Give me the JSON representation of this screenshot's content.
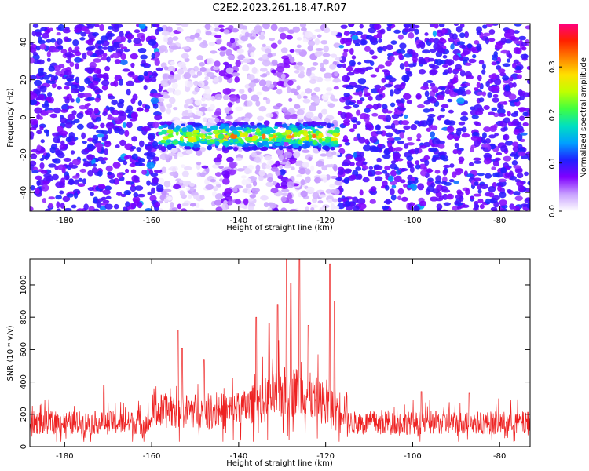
{
  "title": "C2E2.2023.261.18.47.R07",
  "colors": {
    "series": "#ee2222",
    "spectrogram_low": "#7a00ff",
    "colorbar": [
      "#ffffff",
      "#c8a0ff",
      "#8000ff",
      "#2020ff",
      "#00a0ff",
      "#00e0c0",
      "#40ff40",
      "#c0ff00",
      "#ffe000",
      "#ff8000",
      "#ff2000",
      "#ff0080"
    ]
  },
  "chart_data": [
    {
      "type": "heatmap",
      "xlabel": "Height of straight line (km)",
      "ylabel": "Frequency (Hz)",
      "xlim": [
        -188,
        -73
      ],
      "ylim": [
        -50,
        50
      ],
      "xticks": [
        -180,
        -160,
        -140,
        -120,
        -100,
        -80
      ],
      "yticks": [
        -40,
        -20,
        0,
        20,
        40
      ],
      "colorbar": {
        "label": "Normalized spectral amplitude",
        "range": [
          0,
          0.39
        ],
        "ticks": [
          0.0,
          0.1,
          0.2,
          0.3
        ]
      },
      "features": {
        "strong_band_freq_hz": -10,
        "strong_band_x_range": [
          -158,
          -117
        ],
        "low_amplitude_gaps_x": [
          [
            -158,
            -145
          ],
          [
            -140,
            -132
          ],
          [
            -127,
            -117
          ]
        ]
      },
      "grid": false
    },
    {
      "type": "line",
      "xlabel": "Height of straight line (km)",
      "ylabel": "SNR (10 * v/v)",
      "xlim": [
        -188,
        -73
      ],
      "ylim": [
        0,
        1160
      ],
      "xticks": [
        -180,
        -160,
        -140,
        -120,
        -100,
        -80
      ],
      "yticks": [
        0,
        200,
        400,
        600,
        800,
        1000
      ],
      "series": [
        {
          "baseline": 140,
          "noise_amplitude": 120,
          "peaks": [
            {
              "x": -154,
              "y": 720
            },
            {
              "x": -153,
              "y": 610
            },
            {
              "x": -148,
              "y": 540
            },
            {
              "x": -136,
              "y": 800
            },
            {
              "x": -133,
              "y": 760
            },
            {
              "x": -131,
              "y": 880
            },
            {
              "x": -129,
              "y": 1160
            },
            {
              "x": -128,
              "y": 1010
            },
            {
              "x": -126,
              "y": 1160
            },
            {
              "x": -124,
              "y": 750
            },
            {
              "x": -119,
              "y": 1130
            },
            {
              "x": -118,
              "y": 900
            },
            {
              "x": -171,
              "y": 380
            },
            {
              "x": -98,
              "y": 340
            },
            {
              "x": -87,
              "y": 330
            }
          ]
        }
      ],
      "grid": false
    }
  ]
}
